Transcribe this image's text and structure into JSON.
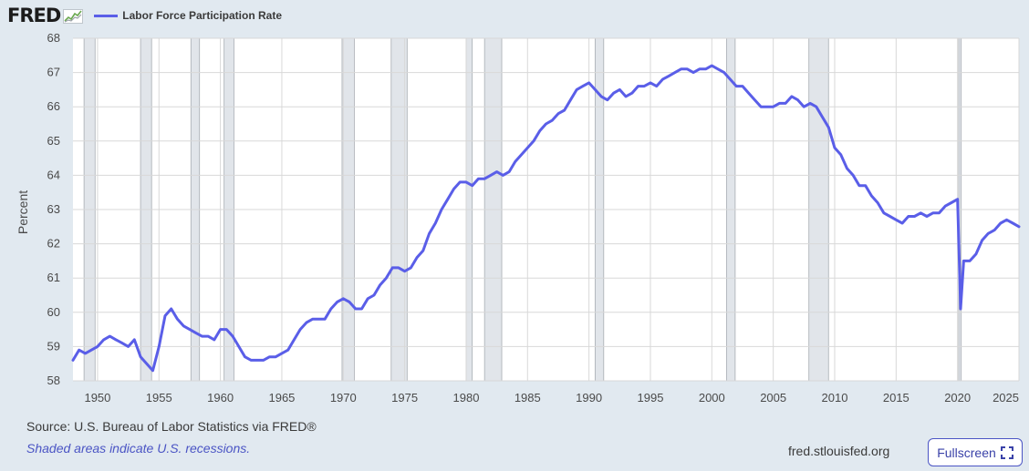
{
  "header": {
    "logo_text": "FRED",
    "legend_label": "Labor Force Participation Rate",
    "legend_color": "#5a5ee8"
  },
  "footer": {
    "source": "Source: U.S. Bureau of Labor Statistics via FRED®",
    "shade_note": "Shaded areas indicate U.S. recessions.",
    "site": "fred.stlouisfed.org",
    "fullscreen_label": "Fullscreen"
  },
  "colors": {
    "line": "#5a5ee8",
    "background": "#e1e9f0",
    "plot_background": "#ffffff",
    "recession": "#e1e5ea",
    "grid": "#d8d8d8"
  },
  "chart_data": {
    "type": "line",
    "xlabel": "",
    "ylabel": "Percent",
    "xlim": [
      1948.0,
      2025.0
    ],
    "ylim": [
      58,
      68
    ],
    "yticks": [
      58,
      59,
      60,
      61,
      62,
      63,
      64,
      65,
      66,
      67,
      68
    ],
    "xticks": [
      1950,
      1955,
      1960,
      1965,
      1970,
      1975,
      1980,
      1985,
      1990,
      1995,
      2000,
      2005,
      2010,
      2015,
      2020,
      2025
    ],
    "grid": true,
    "legend": "top-left",
    "recessions": [
      [
        1948.9,
        1949.8
      ],
      [
        1953.5,
        1954.4
      ],
      [
        1957.6,
        1958.3
      ],
      [
        1960.3,
        1961.1
      ],
      [
        1969.9,
        1970.9
      ],
      [
        1973.9,
        1975.2
      ],
      [
        1980.0,
        1980.5
      ],
      [
        1981.5,
        1982.9
      ],
      [
        1990.5,
        1991.2
      ],
      [
        2001.2,
        2001.9
      ],
      [
        2007.9,
        2009.5
      ],
      [
        2020.1,
        2020.3
      ]
    ],
    "series": [
      {
        "name": "Labor Force Participation Rate",
        "x": [
          1948.0,
          1948.5,
          1949.0,
          1949.5,
          1950.0,
          1950.5,
          1951.0,
          1951.5,
          1952.0,
          1952.5,
          1953.0,
          1953.5,
          1954.0,
          1954.5,
          1955.0,
          1955.5,
          1956.0,
          1956.5,
          1957.0,
          1957.5,
          1958.0,
          1958.5,
          1959.0,
          1959.5,
          1960.0,
          1960.5,
          1961.0,
          1961.5,
          1962.0,
          1962.5,
          1963.0,
          1963.5,
          1964.0,
          1964.5,
          1965.0,
          1965.5,
          1966.0,
          1966.5,
          1967.0,
          1967.5,
          1968.0,
          1968.5,
          1969.0,
          1969.5,
          1970.0,
          1970.5,
          1971.0,
          1971.5,
          1972.0,
          1972.5,
          1973.0,
          1973.5,
          1974.0,
          1974.5,
          1975.0,
          1975.5,
          1976.0,
          1976.5,
          1977.0,
          1977.5,
          1978.0,
          1978.5,
          1979.0,
          1979.5,
          1980.0,
          1980.5,
          1981.0,
          1981.5,
          1982.0,
          1982.5,
          1983.0,
          1983.5,
          1984.0,
          1984.5,
          1985.0,
          1985.5,
          1986.0,
          1986.5,
          1987.0,
          1987.5,
          1988.0,
          1988.5,
          1989.0,
          1989.5,
          1990.0,
          1990.5,
          1991.0,
          1991.5,
          1992.0,
          1992.5,
          1993.0,
          1993.5,
          1994.0,
          1994.5,
          1995.0,
          1995.5,
          1996.0,
          1996.5,
          1997.0,
          1997.5,
          1998.0,
          1998.5,
          1999.0,
          1999.5,
          2000.0,
          2000.5,
          2001.0,
          2001.5,
          2002.0,
          2002.5,
          2003.0,
          2003.5,
          2004.0,
          2004.5,
          2005.0,
          2005.5,
          2006.0,
          2006.5,
          2007.0,
          2007.5,
          2008.0,
          2008.5,
          2009.0,
          2009.5,
          2010.0,
          2010.5,
          2011.0,
          2011.5,
          2012.0,
          2012.5,
          2013.0,
          2013.5,
          2014.0,
          2014.5,
          2015.0,
          2015.5,
          2016.0,
          2016.5,
          2017.0,
          2017.5,
          2018.0,
          2018.5,
          2019.0,
          2019.5,
          2020.0,
          2020.25,
          2020.5,
          2021.0,
          2021.5,
          2022.0,
          2022.5,
          2023.0,
          2023.5,
          2024.0,
          2024.5,
          2025.0
        ],
        "y": [
          58.6,
          58.9,
          58.8,
          58.9,
          59.0,
          59.2,
          59.3,
          59.2,
          59.1,
          59.0,
          59.2,
          58.7,
          58.5,
          58.3,
          59.0,
          59.9,
          60.1,
          59.8,
          59.6,
          59.5,
          59.4,
          59.3,
          59.3,
          59.2,
          59.5,
          59.5,
          59.3,
          59.0,
          58.7,
          58.6,
          58.6,
          58.6,
          58.7,
          58.7,
          58.8,
          58.9,
          59.2,
          59.5,
          59.7,
          59.8,
          59.8,
          59.8,
          60.1,
          60.3,
          60.4,
          60.3,
          60.1,
          60.1,
          60.4,
          60.5,
          60.8,
          61.0,
          61.3,
          61.3,
          61.2,
          61.3,
          61.6,
          61.8,
          62.3,
          62.6,
          63.0,
          63.3,
          63.6,
          63.8,
          63.8,
          63.7,
          63.9,
          63.9,
          64.0,
          64.1,
          64.0,
          64.1,
          64.4,
          64.6,
          64.8,
          65.0,
          65.3,
          65.5,
          65.6,
          65.8,
          65.9,
          66.2,
          66.5,
          66.6,
          66.7,
          66.5,
          66.3,
          66.2,
          66.4,
          66.5,
          66.3,
          66.4,
          66.6,
          66.6,
          66.7,
          66.6,
          66.8,
          66.9,
          67.0,
          67.1,
          67.1,
          67.0,
          67.1,
          67.1,
          67.2,
          67.1,
          67.0,
          66.8,
          66.6,
          66.6,
          66.4,
          66.2,
          66.0,
          66.0,
          66.0,
          66.1,
          66.1,
          66.3,
          66.2,
          66.0,
          66.1,
          66.0,
          65.7,
          65.4,
          64.8,
          64.6,
          64.2,
          64.0,
          63.7,
          63.7,
          63.4,
          63.2,
          62.9,
          62.8,
          62.7,
          62.6,
          62.8,
          62.8,
          62.9,
          62.8,
          62.9,
          62.9,
          63.1,
          63.2,
          63.3,
          60.1,
          61.5,
          61.5,
          61.7,
          62.1,
          62.3,
          62.4,
          62.6,
          62.7,
          62.6,
          62.5
        ]
      }
    ]
  }
}
